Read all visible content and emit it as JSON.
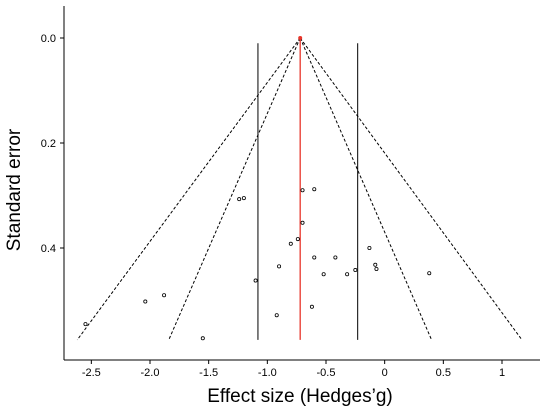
{
  "chart_data": {
    "type": "scatter",
    "title": "",
    "xlabel": "Effect size (Hedges’g)",
    "ylabel": "Standard error",
    "xlim": [
      -2.7,
      1.3
    ],
    "ylim": [
      0.0,
      0.58
    ],
    "y_inverted": true,
    "grid": false,
    "x_ticks": [
      -2.5,
      -2.0,
      -1.5,
      -1.0,
      -0.5,
      0,
      0.5,
      1
    ],
    "x_tick_labels": [
      "-2.5",
      "-2.0",
      "-1.5",
      "-1.0",
      "-0.5",
      "0",
      "0.5",
      "1"
    ],
    "y_ticks": [
      0.0,
      0.2,
      0.4
    ],
    "y_tick_labels": [
      "0.0",
      "0.2",
      "0.4"
    ],
    "pooled_effect": -0.72,
    "line_colors": {
      "pooled": "#e8352a",
      "funnel": "#000000",
      "limits": "#000000"
    },
    "vertical_limits": [
      -1.08,
      -0.23
    ],
    "funnel_inner_bottom": [
      -1.84,
      0.4
    ],
    "funnel_outer_bottom": [
      -2.62,
      1.17
    ],
    "funnel_bottom_se": 0.575,
    "points": [
      {
        "x": -2.55,
        "y": 0.545
      },
      {
        "x": -2.04,
        "y": 0.502
      },
      {
        "x": -1.88,
        "y": 0.49
      },
      {
        "x": -1.55,
        "y": 0.572
      },
      {
        "x": -1.24,
        "y": 0.307
      },
      {
        "x": -1.2,
        "y": 0.305
      },
      {
        "x": -1.1,
        "y": 0.462
      },
      {
        "x": -0.92,
        "y": 0.528
      },
      {
        "x": -0.9,
        "y": 0.435
      },
      {
        "x": -0.8,
        "y": 0.392
      },
      {
        "x": -0.74,
        "y": 0.383
      },
      {
        "x": -0.7,
        "y": 0.29
      },
      {
        "x": -0.7,
        "y": 0.352
      },
      {
        "x": -0.6,
        "y": 0.288
      },
      {
        "x": -0.6,
        "y": 0.418
      },
      {
        "x": -0.62,
        "y": 0.512
      },
      {
        "x": -0.52,
        "y": 0.45
      },
      {
        "x": -0.42,
        "y": 0.418
      },
      {
        "x": -0.32,
        "y": 0.45
      },
      {
        "x": -0.25,
        "y": 0.442
      },
      {
        "x": -0.13,
        "y": 0.4
      },
      {
        "x": -0.08,
        "y": 0.432
      },
      {
        "x": -0.07,
        "y": 0.44
      },
      {
        "x": 0.38,
        "y": 0.448
      }
    ]
  }
}
